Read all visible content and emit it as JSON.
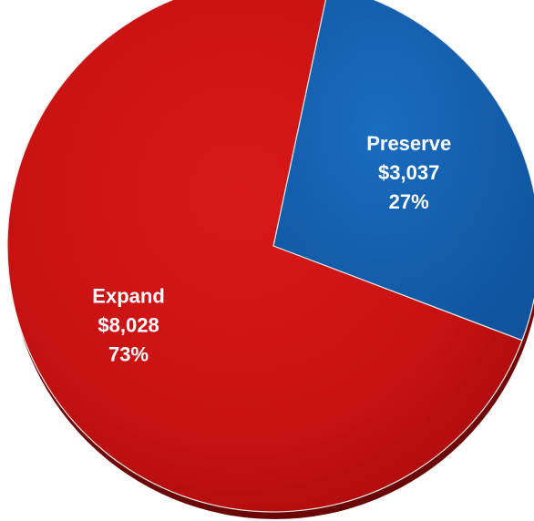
{
  "chart_data": {
    "type": "pie",
    "title": "",
    "legend": "none",
    "slices": [
      {
        "name": "Preserve",
        "value": 3037,
        "value_label": "$3,037",
        "percent": 27,
        "percent_label": "27%",
        "color": "#1560ad"
      },
      {
        "name": "Expand",
        "value": 8028,
        "value_label": "$8,028",
        "percent": 73,
        "percent_label": "73%",
        "color": "#cc1414"
      }
    ]
  }
}
